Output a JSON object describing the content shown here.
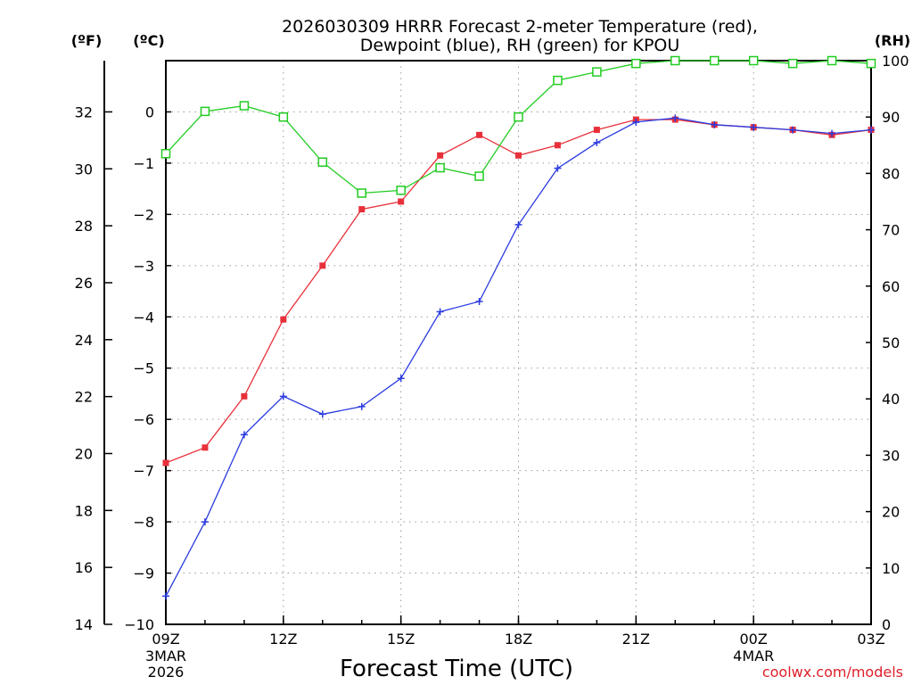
{
  "chart_data": {
    "type": "line",
    "title_lines": [
      "2026030309 HRRR Forecast 2-meter Temperature (red),",
      "Dewpoint (blue), RH (green) for KPOU"
    ],
    "xlabel": "Forecast Time (UTC)",
    "credit": "coolwx.com/models",
    "units": {
      "fahrenheit": "(ºF)",
      "celsius": "(ºC)",
      "rh": "(RH)"
    },
    "x_hours": [
      0,
      1,
      2,
      3,
      4,
      5,
      6,
      7,
      8,
      9,
      10,
      11,
      12,
      13,
      14,
      15,
      16,
      17,
      18
    ],
    "xlim": [
      0,
      18
    ],
    "x_ticks": [
      {
        "hour": 0,
        "label": "09Z",
        "date_lines": [
          "3MAR",
          "2026"
        ]
      },
      {
        "hour": 3,
        "label": "12Z",
        "date_lines": []
      },
      {
        "hour": 6,
        "label": "15Z",
        "date_lines": []
      },
      {
        "hour": 9,
        "label": "18Z",
        "date_lines": []
      },
      {
        "hour": 12,
        "label": "21Z",
        "date_lines": []
      },
      {
        "hour": 15,
        "label": "00Z",
        "date_lines": [
          "4MAR"
        ]
      },
      {
        "hour": 18,
        "label": "03Z",
        "date_lines": []
      }
    ],
    "celsius_axis": {
      "lim": [
        -10,
        1
      ],
      "ticks": [
        0,
        -1,
        -2,
        -3,
        -4,
        -5,
        -6,
        -7,
        -8,
        -9,
        -10
      ],
      "tick_labels": [
        "0",
        "−1",
        "−2",
        "−3",
        "−4",
        "−5",
        "−6",
        "−7",
        "−8",
        "−9",
        "−10"
      ]
    },
    "fahrenheit_axis": {
      "ticks": [
        32,
        30,
        28,
        26,
        24,
        22,
        20,
        18,
        16,
        14
      ],
      "tick_labels": [
        "32",
        "30",
        "28",
        "26",
        "24",
        "22",
        "20",
        "18",
        "16",
        "14"
      ]
    },
    "rh_axis": {
      "lim": [
        0,
        100
      ],
      "ticks": [
        100,
        90,
        80,
        70,
        60,
        50,
        40,
        30,
        20,
        10,
        0
      ],
      "tick_labels": [
        "100",
        "90",
        "80",
        "70",
        "60",
        "50",
        "40",
        "30",
        "20",
        "10",
        "0"
      ]
    },
    "grid": true,
    "series": [
      {
        "name": "Temperature",
        "axis": "celsius",
        "color": "#e8303a",
        "marker": "filled-square",
        "values": [
          -6.85,
          -6.55,
          -5.55,
          -4.05,
          -3.0,
          -1.9,
          -1.75,
          -0.85,
          -0.45,
          -0.85,
          -0.65,
          -0.35,
          -0.15,
          -0.15,
          -0.25,
          -0.3,
          -0.35,
          -0.45,
          -0.35
        ]
      },
      {
        "name": "Dewpoint",
        "axis": "celsius",
        "color": "#2a3ae0",
        "marker": "plus",
        "values": [
          -9.45,
          -8.0,
          -6.3,
          -5.55,
          -5.9,
          -5.75,
          -5.2,
          -3.9,
          -3.7,
          -2.2,
          -1.1,
          -0.6,
          -0.2,
          -0.12,
          -0.25,
          -0.3,
          -0.35,
          -0.42,
          -0.35
        ]
      },
      {
        "name": "RH",
        "axis": "rh",
        "color": "#22cc22",
        "marker": "open-square",
        "values": [
          83.5,
          91,
          92,
          90,
          82,
          76.5,
          77,
          81,
          79.5,
          90,
          96.5,
          98,
          99.5,
          100,
          100,
          100,
          99.5,
          100,
          99.5
        ]
      }
    ]
  }
}
